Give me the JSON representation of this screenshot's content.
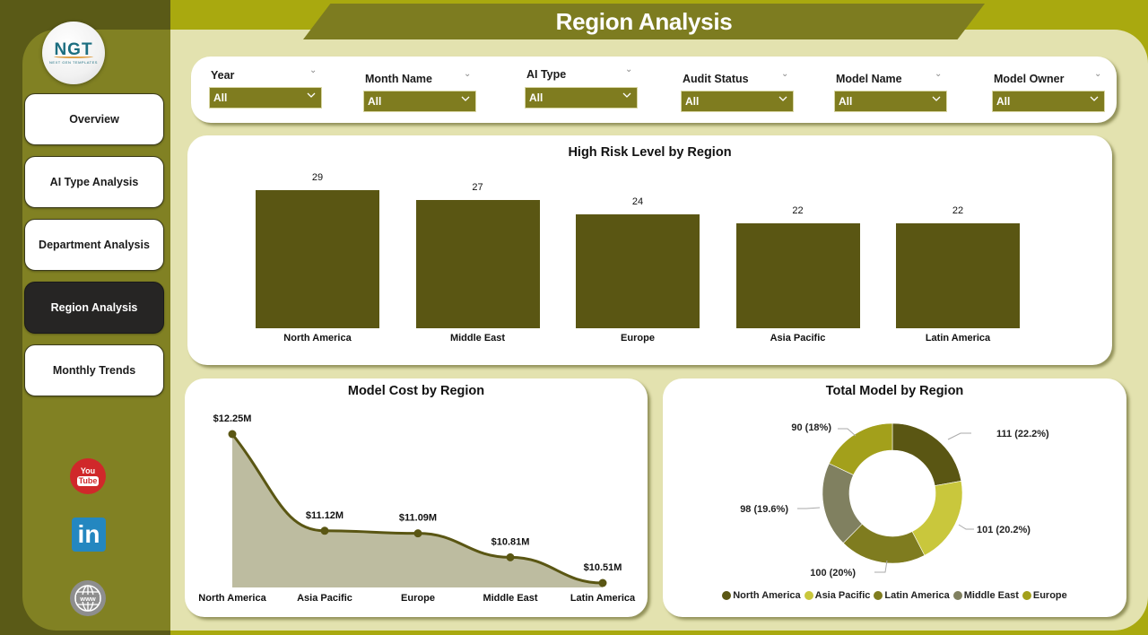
{
  "page": {
    "title": "Region Analysis"
  },
  "logo": {
    "text": "NGT",
    "subtitle": "NEXT GEN TEMPLATES"
  },
  "sidebar": {
    "items": [
      {
        "label": "Overview",
        "active": false
      },
      {
        "label": "AI Type Analysis",
        "active": false
      },
      {
        "label": "Department Analysis",
        "active": false
      },
      {
        "label": "Region Analysis",
        "active": true
      },
      {
        "label": "Monthly Trends",
        "active": false
      }
    ],
    "social": [
      {
        "name": "youtube-icon",
        "text_top": "You",
        "text_bottom": "Tube"
      },
      {
        "name": "linkedin-icon",
        "text": "in"
      },
      {
        "name": "website-icon",
        "text": "www"
      }
    ]
  },
  "filters": [
    {
      "label": "Year",
      "value": "All"
    },
    {
      "label": "Month Name",
      "value": "All"
    },
    {
      "label": "AI Type",
      "value": "All"
    },
    {
      "label": "Audit Status",
      "value": "All"
    },
    {
      "label": "Model Name",
      "value": "All"
    },
    {
      "label": "Model Owner",
      "value": "All"
    }
  ],
  "colors": {
    "bar": "#5a5613",
    "line": "#5a5613",
    "area": "#bdbca0",
    "donut": [
      "#5a5613",
      "#c9c73c",
      "#7f7c1f",
      "#808060",
      "#a3a01b"
    ]
  },
  "chart_data": [
    {
      "type": "bar",
      "title": "High Risk Level by Region",
      "categories": [
        "North America",
        "Middle East",
        "Europe",
        "Asia Pacific",
        "Latin America"
      ],
      "values": [
        29,
        27,
        24,
        22,
        22
      ],
      "xlabel": "",
      "ylabel": "",
      "grid": false
    },
    {
      "type": "area",
      "title": "Model Cost by Region",
      "categories": [
        "North America",
        "Asia Pacific",
        "Europe",
        "Middle East",
        "Latin America"
      ],
      "values": [
        12.25,
        11.12,
        11.09,
        10.81,
        10.51
      ],
      "labels": [
        "$12.25M",
        "$11.12M",
        "$11.09M",
        "$10.81M",
        "$10.51M"
      ],
      "unit": "$M",
      "grid": false
    },
    {
      "type": "pie",
      "subtype": "donut",
      "title": "Total Model by Region",
      "categories": [
        "North America",
        "Asia Pacific",
        "Latin America",
        "Middle East",
        "Europe"
      ],
      "values": [
        111,
        101,
        100,
        98,
        90
      ],
      "percentages": [
        22.2,
        20.2,
        20,
        19.6,
        18
      ],
      "labels": [
        "111 (22.2%)",
        "101 (20.2%)",
        "100 (20%)",
        "98 (19.6%)",
        "90 (18%)"
      ],
      "legend_position": "bottom"
    }
  ]
}
